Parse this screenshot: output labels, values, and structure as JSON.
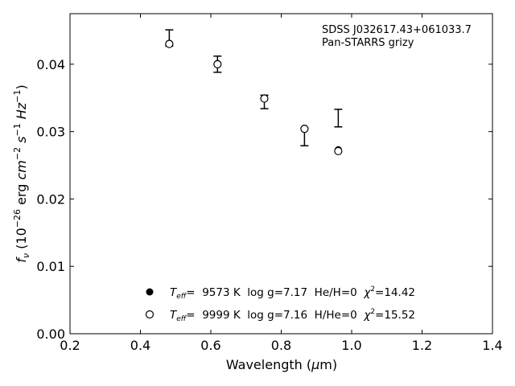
{
  "chart_data": {
    "type": "scatter",
    "xlabel_main": "Wavelength (",
    "xlabel_mu": "μ",
    "xlabel_unit": "m)",
    "ylabel_f": "f",
    "ylabel_nu": "ν",
    "ylabel_open": " (10",
    "ylabel_exp1": "−26",
    "ylabel_erg": " erg ",
    "ylabel_cm": "cm",
    "ylabel_exp2": "−2",
    "ylabel_s": " s",
    "ylabel_exp3": "−1",
    "ylabel_hz": " Hz",
    "ylabel_exp4": "−1",
    "ylabel_close": ")",
    "xlim": [
      0.2,
      1.4
    ],
    "ylim": [
      0.0,
      0.0475
    ],
    "xticks": [
      0.2,
      0.4,
      0.6,
      0.8,
      1.0,
      1.2,
      1.4
    ],
    "xtick_labels": [
      "0.2",
      "0.4",
      "0.6",
      "0.8",
      "1.0",
      "1.2",
      "1.4"
    ],
    "yticks": [
      0.0,
      0.01,
      0.02,
      0.03,
      0.04
    ],
    "ytick_labels": [
      "0.00",
      "0.01",
      "0.02",
      "0.03",
      "0.04"
    ],
    "annotation_line1": "SDSS J032617.43+061033.7",
    "annotation_line2": "Pan-STARRS grizy",
    "observed": {
      "x": [
        0.482,
        0.619,
        0.752,
        0.866,
        0.962
      ],
      "y": [
        0.0439,
        0.04,
        0.0344,
        0.0292,
        0.032
      ],
      "yerr": [
        0.0012,
        0.0012,
        0.001,
        0.0013,
        0.0013
      ]
    },
    "series": [
      {
        "name": "Teff=9573 K log g=7.17 He/H=0",
        "marker": "filled",
        "x": [
          0.482,
          0.619,
          0.752,
          0.866,
          0.962
        ],
        "y": [
          0.0431,
          0.0401,
          0.035,
          0.0305,
          0.0273
        ]
      },
      {
        "name": "Teff=9999 K log g=7.16 H/He=0",
        "marker": "open",
        "x": [
          0.482,
          0.619,
          0.752,
          0.866,
          0.962
        ],
        "y": [
          0.043,
          0.04,
          0.0349,
          0.0304,
          0.0271
        ]
      }
    ],
    "legend": [
      {
        "T": "T",
        "eff": "eff",
        "eq": "=  9573 K  log g=7.17  He/H=0  ",
        "chi": "χ",
        "two": "2",
        "val": "=14.42"
      },
      {
        "T": "T",
        "eff": "eff",
        "eq": "=  9999 K  log g=7.16  H/He=0  ",
        "chi": "χ",
        "two": "2",
        "val": "=15.52"
      }
    ],
    "legend_placement": "bottom-center",
    "grid": false,
    "colors": {
      "points": "#000000",
      "axes": "#000000",
      "background": "#ffffff"
    }
  }
}
